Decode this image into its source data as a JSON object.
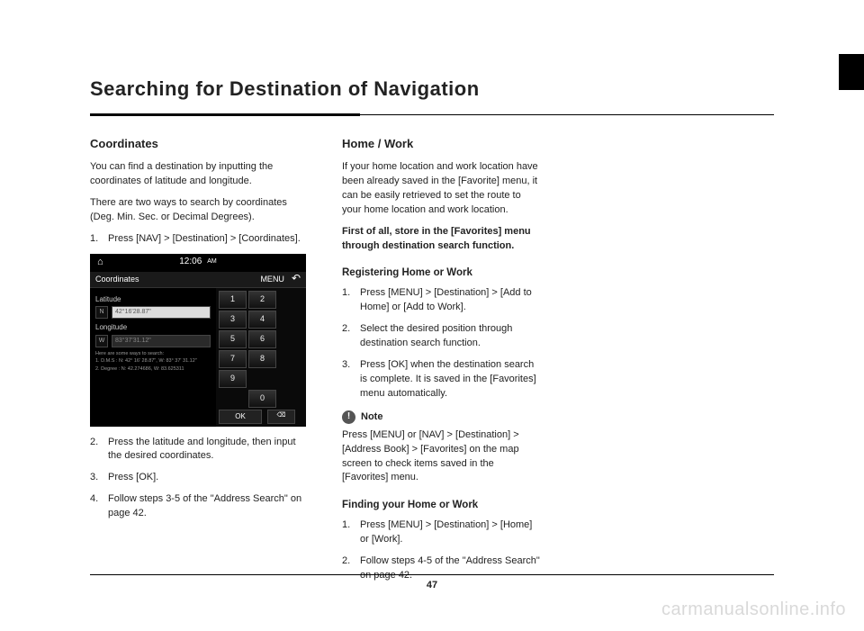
{
  "page": {
    "title": "Searching for Destination of Navigation",
    "number": "47",
    "watermark": "carmanualsonline.info"
  },
  "col1": {
    "heading": "Coordinates",
    "p1": "You can find a destination by inputting the coordinates of latitude and longitude.",
    "p2": "There are two ways to search by coordinates (Deg. Min. Sec. or Decimal Degrees).",
    "step1": "Press [NAV] > [Destination] > [Coordinates].",
    "step2": "Press the latitude and longitude, then input the desired coordinates.",
    "step3": "Press [OK].",
    "step4": "Follow steps 3-5 of the \"Address Search\" on page 42."
  },
  "screenshot": {
    "time": "12:06",
    "ampm": "AM",
    "title": "Coordinates",
    "menu": "MENU",
    "lat_label": "Latitude",
    "lat_dir": "N",
    "lat_val": "42°16'28.87\"",
    "lon_label": "Longitude",
    "lon_dir": "W",
    "lon_val": "83°37'31.12\"",
    "hint_title": "Here are some ways to search:",
    "hint1": "1. D.M.S : N: 42° 16' 28.87\", W: 83° 37' 31.12\"",
    "hint2": "2. Degree : N: 42.274686, W: 83.625311",
    "keys": [
      "1",
      "2",
      "3",
      "4",
      "5",
      "6",
      "7",
      "8",
      "9",
      "0"
    ],
    "ok": "OK",
    "del": "⌫"
  },
  "col2": {
    "heading": "Home / Work",
    "p1": "If your home location and work location have been already saved in the [Favorite] menu, it can be easily retrieved to set the route to your home location and work location.",
    "p2": "First of all, store in the [Favorites] menu through destination search function.",
    "sub1": "Registering Home or Work",
    "r_step1": "Press [MENU] > [Destination] > [Add to Home] or [Add to Work].",
    "r_step2": "Select the desired position through destination search function.",
    "r_step3": "Press [OK] when the destination search is complete. It is saved in the [Favorites] menu automatically.",
    "note_label": "Note",
    "note_body": "Press [MENU] or [NAV] > [Destination] > [Address Book] > [Favorites] on the map screen to check items saved in the [Favorites] menu.",
    "sub2": "Finding your Home or Work",
    "f_step1": "Press [MENU] > [Destination] > [Home] or [Work].",
    "f_step2": "Follow steps 4-5 of the \"Address Search\" on page 42."
  }
}
